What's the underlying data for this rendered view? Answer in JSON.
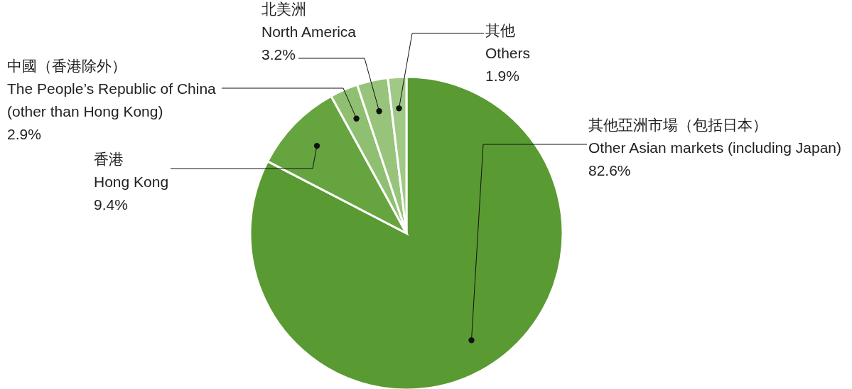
{
  "chart_data": {
    "type": "pie",
    "categories": [
      "其他亞洲市場（包括日本）\nOther Asian markets (including Japan)",
      "香港\nHong Kong",
      "中國（香港除外）\nThe People’s Republic of China\n(other than Hong Kong)",
      "北美洲\nNorth America",
      "其他\nOthers"
    ],
    "values": [
      82.6,
      9.4,
      2.9,
      3.2,
      1.9
    ],
    "value_labels": [
      "82.6%",
      "9.4%",
      "2.9%",
      "3.2%",
      "1.9%"
    ],
    "colors": [
      "#5a9a32",
      "#66a440",
      "#8fbf70",
      "#97c47a",
      "#9fc985"
    ]
  }
}
